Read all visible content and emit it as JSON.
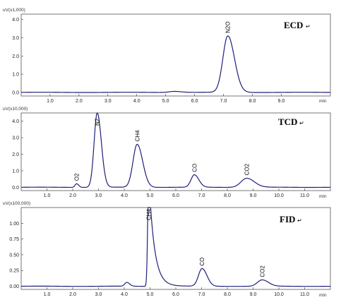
{
  "chart_data": [
    {
      "type": "line",
      "panel_label": "ECD",
      "y_unit_label": "uV(x1,000)",
      "x_unit_label": "min",
      "xlim": [
        0.0,
        10.7
      ],
      "ylim": [
        -0.2,
        4.3
      ],
      "xticks": [
        "1.0",
        "2.0",
        "3.0",
        "4.0",
        "5.0",
        "6.0",
        "7.0",
        "8.0",
        "9.0"
      ],
      "xtick_values": [
        1,
        2,
        3,
        4,
        5,
        6,
        7,
        8,
        9
      ],
      "yticks": [
        "0.0",
        "1.0",
        "2.0",
        "3.0",
        "4.0"
      ],
      "ytick_values": [
        0,
        1,
        2,
        3,
        4
      ],
      "baseline": 0.0,
      "peaks": [
        {
          "label": "N2O",
          "rt": 7.15,
          "height": 3.1,
          "width": 0.17
        }
      ],
      "extra_features": [
        {
          "rt": 5.3,
          "height": 0.06,
          "width": 0.18
        }
      ]
    },
    {
      "type": "line",
      "panel_label": "TCD",
      "y_unit_label": "uV(x10,000)",
      "x_unit_label": "min",
      "xlim": [
        0.0,
        12.0
      ],
      "ylim": [
        -0.2,
        4.5
      ],
      "xticks": [
        "1.0",
        "2.0",
        "3.0",
        "4.0",
        "5.0",
        "6.0",
        "7.0",
        "8.0",
        "9.0",
        "10.0",
        "11.0"
      ],
      "xtick_values": [
        1,
        2,
        3,
        4,
        5,
        6,
        7,
        8,
        9,
        10,
        11
      ],
      "yticks": [
        "0.0",
        "1.0",
        "2.0",
        "3.0",
        "4.0"
      ],
      "ytick_values": [
        0,
        1,
        2,
        3,
        4
      ],
      "baseline": 0.0,
      "peaks": [
        {
          "label": "O2",
          "rt": 2.15,
          "height": 0.22,
          "width": 0.06
        },
        {
          "label": "N2",
          "rt": 2.95,
          "height": 4.5,
          "width": 0.12
        },
        {
          "label": "CH4",
          "rt": 4.5,
          "height": 2.6,
          "width": 0.16
        },
        {
          "label": "CO",
          "rt": 6.72,
          "height": 0.75,
          "width": 0.13
        },
        {
          "label": "CO2",
          "rt": 8.75,
          "height": 0.55,
          "width": 0.22
        }
      ]
    },
    {
      "type": "line",
      "panel_label": "FID",
      "y_unit_label": "uV(x100,000)",
      "x_unit_label": "min",
      "xlim": [
        0.0,
        12.0
      ],
      "ylim": [
        -0.05,
        1.25
      ],
      "xticks": [
        "1.0",
        "2.0",
        "3.0",
        "4.0",
        "5.0",
        "6.0",
        "7.0",
        "8.0",
        "9.0",
        "10.0",
        "11.0"
      ],
      "xtick_values": [
        1,
        2,
        3,
        4,
        5,
        6,
        7,
        8,
        9,
        10,
        11
      ],
      "yticks": [
        "0.00",
        "0.25",
        "0.50",
        "0.75",
        "1.00"
      ],
      "ytick_values": [
        0,
        0.25,
        0.5,
        0.75,
        1.0
      ],
      "baseline": 0.0,
      "peaks": [
        {
          "label": "CH4",
          "rt": 4.95,
          "height": 1.8,
          "width": 0.25,
          "tail": 1.0
        },
        {
          "label": "CO",
          "rt": 7.02,
          "height": 0.28,
          "width": 0.14
        },
        {
          "label": "CO2",
          "rt": 9.35,
          "height": 0.1,
          "width": 0.18
        }
      ],
      "extra_features": [
        {
          "rt": 4.1,
          "height": 0.06,
          "width": 0.08
        }
      ]
    }
  ]
}
